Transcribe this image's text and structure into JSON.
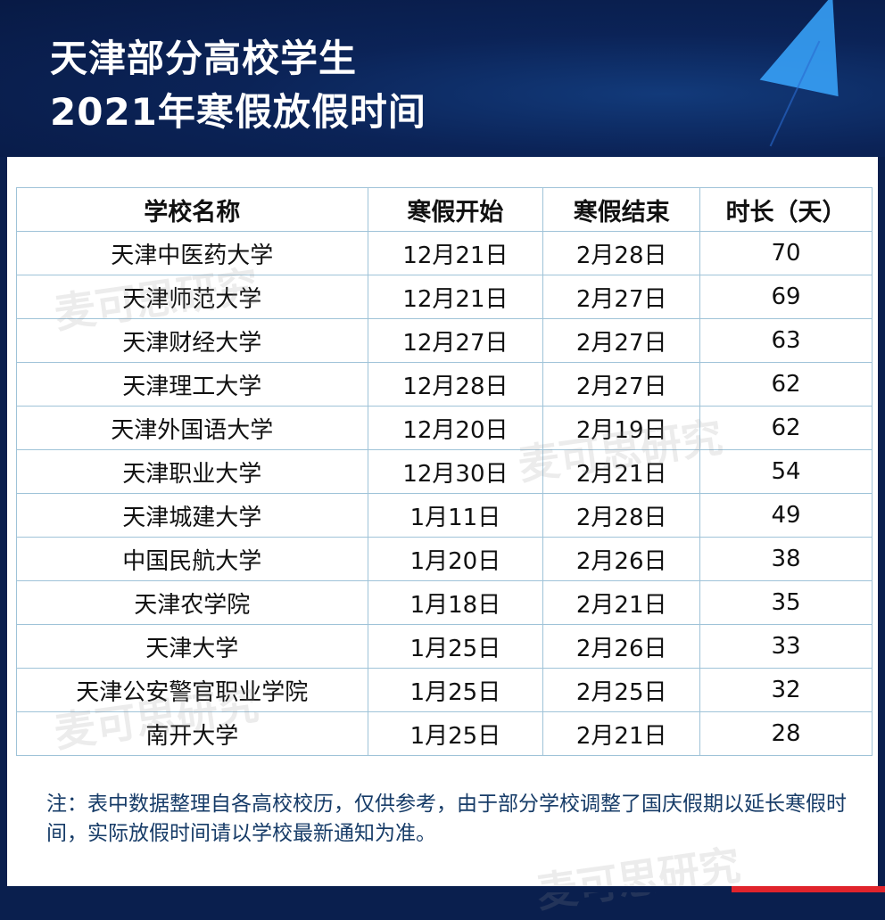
{
  "header": {
    "title_line1": "天津部分高校学生",
    "title_line2": "2021年寒假放假时间"
  },
  "table": {
    "columns": [
      "学校名称",
      "寒假开始",
      "寒假结束",
      "时长（天）"
    ],
    "rows": [
      [
        "天津中医药大学",
        "12月21日",
        "2月28日",
        "70"
      ],
      [
        "天津师范大学",
        "12月21日",
        "2月27日",
        "69"
      ],
      [
        "天津财经大学",
        "12月27日",
        "2月27日",
        "63"
      ],
      [
        "天津理工大学",
        "12月28日",
        "2月27日",
        "62"
      ],
      [
        "天津外国语大学",
        "12月20日",
        "2月19日",
        "62"
      ],
      [
        "天津职业大学",
        "12月30日",
        "2月21日",
        "54"
      ],
      [
        "天津城建大学",
        "1月11日",
        "2月28日",
        "49"
      ],
      [
        "中国民航大学",
        "1月20日",
        "2月26日",
        "38"
      ],
      [
        "天津农学院",
        "1月18日",
        "2月21日",
        "35"
      ],
      [
        "天津大学",
        "1月25日",
        "2月26日",
        "33"
      ],
      [
        "天津公安警官职业学院",
        "1月25日",
        "2月25日",
        "32"
      ],
      [
        "南开大学",
        "1月25日",
        "2月21日",
        "28"
      ]
    ]
  },
  "note": "注：表中数据整理自各高校校历，仅供参考，由于部分学校调整了国庆假期以延长寒假时间，实际放假时间请以学校最新通知为准。",
  "watermark": "麦可思研究",
  "colors": {
    "header_bg": "#0b2357",
    "border": "#9fc3d8",
    "note_text": "#173c68",
    "accent_red": "#e0242c"
  }
}
